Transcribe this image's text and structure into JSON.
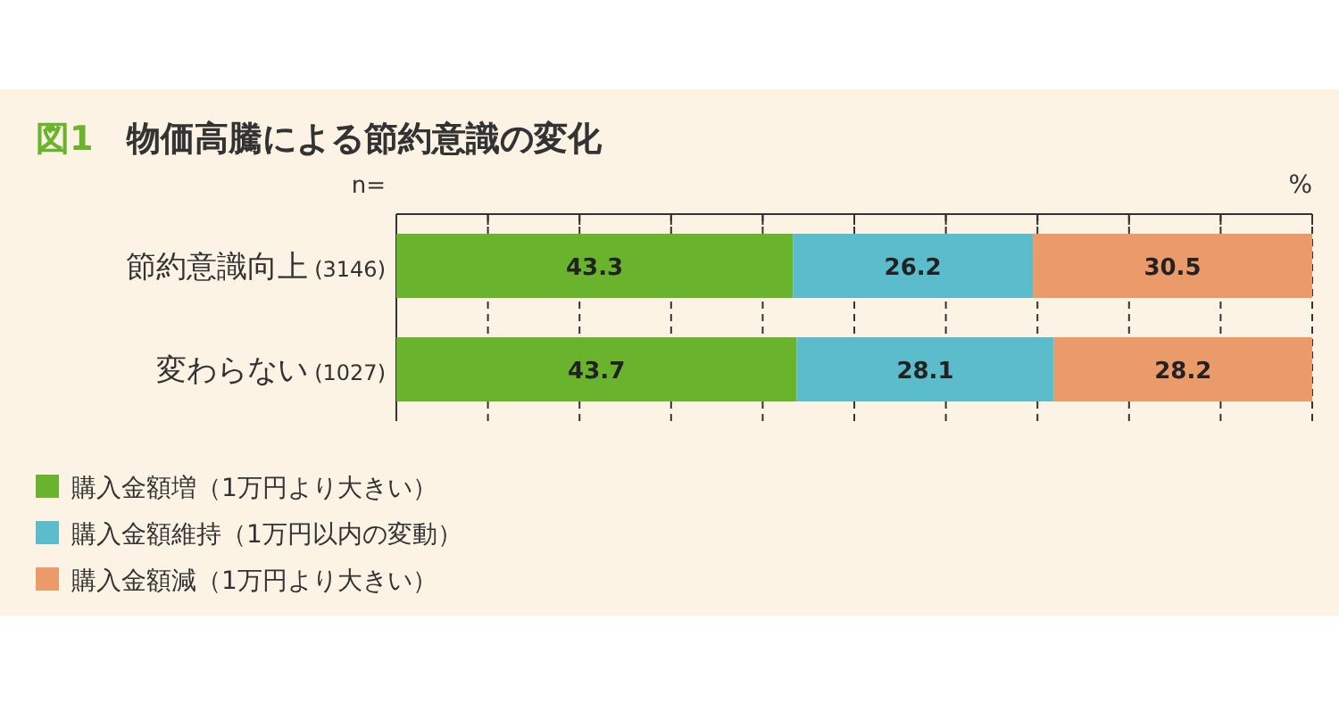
{
  "chart_data": {
    "type": "bar",
    "orientation": "horizontal",
    "stacked": true,
    "title": "図1　物価高騰による節約意識の変化",
    "categories": [
      "節約意識向上 (3146)",
      "変わらない (1027)"
    ],
    "series": [
      {
        "name": "購入金額増（1万円より大きい）",
        "color": "#6ab42d",
        "values": [
          43.3,
          43.7
        ]
      },
      {
        "name": "購入金額維持（1万円以内の変動）",
        "color": "#5bbccc",
        "values": [
          26.2,
          28.1
        ]
      },
      {
        "name": "購入金額減（1万円より大きい）",
        "color": "#eb9a6a",
        "values": [
          30.5,
          28.2
        ]
      }
    ],
    "xlim": [
      0,
      100
    ],
    "xticks": [
      {
        "value": 0,
        "label": null
      },
      {
        "value": 10,
        "label": null
      },
      {
        "value": 20,
        "label": null
      },
      {
        "value": 30,
        "label": null
      },
      {
        "value": 40,
        "label": null
      },
      {
        "value": 50,
        "label": null
      },
      {
        "value": 60,
        "label": null
      },
      {
        "value": 70,
        "label": null
      },
      {
        "value": 80,
        "label": null
      },
      {
        "value": 90,
        "label": null
      },
      {
        "value": 100,
        "label": null
      }
    ],
    "tick_labels": "y",
    "grid": "x",
    "data_labels": true,
    "legend": "bottom left",
    "annotations": [
      "n=",
      "%"
    ]
  }
}
